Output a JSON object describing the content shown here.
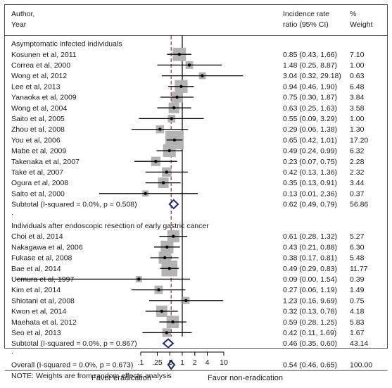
{
  "chart_data": {
    "type": "forest",
    "header": {
      "col1_line1": "Author,",
      "col1_line2": "Year",
      "col2_line1": "Incidence rate",
      "col2_line2": "ratio (95% CI)",
      "col3_line1": "%",
      "col3_line2": "Weight"
    },
    "rows": [
      {
        "kind": "group",
        "label": "Asymptomatic infected individuals"
      },
      {
        "kind": "study",
        "label": "Kosunen et al, 2011",
        "est": 0.85,
        "lo": 0.43,
        "hi": 1.66,
        "ci_text": "0.85 (0.43, 1.66)",
        "weight": 7.1,
        "weight_text": "7.10"
      },
      {
        "kind": "study",
        "label": "Correa et al, 2000",
        "est": 1.48,
        "lo": 0.25,
        "hi": 8.87,
        "ci_text": "1.48 (0.25, 8.87)",
        "weight": 1.0,
        "weight_text": "1.00"
      },
      {
        "kind": "study",
        "label": "Wong et al, 2012",
        "est": 3.04,
        "lo": 0.32,
        "hi": 29.18,
        "ci_text": "3.04 (0.32, 29.18)",
        "weight": 0.63,
        "weight_text": "0.63"
      },
      {
        "kind": "study",
        "label": "Lee et al, 2013",
        "est": 0.94,
        "lo": 0.46,
        "hi": 1.9,
        "ci_text": "0.94 (0.46, 1.90)",
        "weight": 6.48,
        "weight_text": "6.48"
      },
      {
        "kind": "study",
        "label": "Yanaoka et al, 2009",
        "est": 0.75,
        "lo": 0.3,
        "hi": 1.87,
        "ci_text": "0.75 (0.30, 1.87)",
        "weight": 3.84,
        "weight_text": "3.84"
      },
      {
        "kind": "study",
        "label": "Wong et al, 2004",
        "est": 0.63,
        "lo": 0.25,
        "hi": 1.63,
        "ci_text": "0.63 (0.25, 1.63)",
        "weight": 3.58,
        "weight_text": "3.58"
      },
      {
        "kind": "study",
        "label": "Saito et al, 2005",
        "est": 0.55,
        "lo": 0.09,
        "hi": 3.29,
        "ci_text": "0.55 (0.09, 3.29)",
        "weight": 1.0,
        "weight_text": "1.00"
      },
      {
        "kind": "study",
        "label": "Zhou et al, 2008",
        "est": 0.29,
        "lo": 0.06,
        "hi": 1.38,
        "ci_text": "0.29 (0.06, 1.38)",
        "weight": 1.3,
        "weight_text": "1.30"
      },
      {
        "kind": "study",
        "label": "You et al, 2006",
        "est": 0.65,
        "lo": 0.42,
        "hi": 1.01,
        "ci_text": "0.65 (0.42, 1.01)",
        "weight": 17.2,
        "weight_text": "17.20"
      },
      {
        "kind": "study",
        "label": "Mabe et al, 2009",
        "est": 0.49,
        "lo": 0.24,
        "hi": 0.99,
        "ci_text": "0.49 (0.24, 0.99)",
        "weight": 6.32,
        "weight_text": "6.32"
      },
      {
        "kind": "study",
        "label": "Takenaka et al, 2007",
        "est": 0.23,
        "lo": 0.07,
        "hi": 0.75,
        "ci_text": "0.23 (0.07, 0.75)",
        "weight": 2.28,
        "weight_text": "2.28"
      },
      {
        "kind": "study",
        "label": "Take et al, 2007",
        "est": 0.42,
        "lo": 0.13,
        "hi": 1.36,
        "ci_text": "0.42 (0.13, 1.36)",
        "weight": 2.32,
        "weight_text": "2.32"
      },
      {
        "kind": "study",
        "label": "Ogura et al, 2008",
        "est": 0.35,
        "lo": 0.13,
        "hi": 0.91,
        "ci_text": "0.35 (0.13, 0.91)",
        "weight": 3.44,
        "weight_text": "3.44"
      },
      {
        "kind": "study",
        "label": "Saito et al, 2000",
        "est": 0.13,
        "lo": 0.01,
        "hi": 2.36,
        "ci_text": "0.13 (0.01, 2.36)",
        "weight": 0.37,
        "weight_text": "0.37"
      },
      {
        "kind": "subtotal",
        "label": "Subtotal  (I-squared = 0.0%, p = 0.508)",
        "est": 0.62,
        "lo": 0.49,
        "hi": 0.79,
        "ci_text": "0.62 (0.49, 0.79)",
        "weight_text": "56.86"
      },
      {
        "kind": "dot",
        "label": "."
      },
      {
        "kind": "group",
        "label": "Individuals after endoscopic resection of early gastric cancer"
      },
      {
        "kind": "study",
        "label": "Choi et al, 2014",
        "est": 0.61,
        "lo": 0.28,
        "hi": 1.32,
        "ci_text": "0.61 (0.28, 1.32)",
        "weight": 5.27,
        "weight_text": "5.27"
      },
      {
        "kind": "study",
        "label": "Nakagawa et al, 2006",
        "est": 0.43,
        "lo": 0.21,
        "hi": 0.88,
        "ci_text": "0.43 (0.21, 0.88)",
        "weight": 6.3,
        "weight_text": "6.30"
      },
      {
        "kind": "study",
        "label": "Fukase et al, 2008",
        "est": 0.38,
        "lo": 0.17,
        "hi": 0.81,
        "ci_text": "0.38 (0.17, 0.81)",
        "weight": 5.48,
        "weight_text": "5.48"
      },
      {
        "kind": "study",
        "label": "Bae et al, 2014",
        "est": 0.49,
        "lo": 0.29,
        "hi": 0.83,
        "ci_text": "0.49 (0.29, 0.83)",
        "weight": 11.77,
        "weight_text": "11.77"
      },
      {
        "kind": "study",
        "label": "Uemura et al, 1997",
        "est": 0.09,
        "lo": 0.0,
        "hi": 1.54,
        "ci_text": "0.09 (0.00, 1.54)",
        "weight": 0.39,
        "weight_text": "0.39"
      },
      {
        "kind": "study",
        "label": "Kim et al, 2014",
        "est": 0.27,
        "lo": 0.06,
        "hi": 1.19,
        "ci_text": "0.27 (0.06, 1.19)",
        "weight": 1.49,
        "weight_text": "1.49"
      },
      {
        "kind": "study",
        "label": "Shiotani et al, 2008",
        "est": 1.23,
        "lo": 0.16,
        "hi": 9.69,
        "ci_text": "1.23 (0.16, 9.69)",
        "weight": 0.75,
        "weight_text": "0.75"
      },
      {
        "kind": "study",
        "label": "Kwon et al, 2014",
        "est": 0.32,
        "lo": 0.13,
        "hi": 0.78,
        "ci_text": "0.32 (0.13, 0.78)",
        "weight": 4.18,
        "weight_text": "4.18"
      },
      {
        "kind": "study",
        "label": "Maehata et al, 2012",
        "est": 0.59,
        "lo": 0.28,
        "hi": 1.25,
        "ci_text": "0.59 (0.28, 1.25)",
        "weight": 5.83,
        "weight_text": "5.83"
      },
      {
        "kind": "study",
        "label": "Seo et al, 2013",
        "est": 0.42,
        "lo": 0.11,
        "hi": 1.69,
        "ci_text": "0.42 (0.11, 1.69)",
        "weight": 1.67,
        "weight_text": "1.67"
      },
      {
        "kind": "subtotal",
        "label": "Subtotal  (I-squared = 0.0%, p = 0.867)",
        "est": 0.46,
        "lo": 0.35,
        "hi": 0.6,
        "ci_text": "0.46 (0.35, 0.60)",
        "weight_text": "43.14"
      },
      {
        "kind": "dot",
        "label": "."
      },
      {
        "kind": "overall",
        "label": "Overall  (I-squared = 0.0%, p = 0.673)",
        "est": 0.54,
        "lo": 0.46,
        "hi": 0.65,
        "ci_text": "0.54 (0.46, 0.65)",
        "weight_text": "100.00"
      },
      {
        "kind": "note",
        "label": "NOTE: Weights are from random effects analysis"
      }
    ],
    "x_scale": "log",
    "xlim": [
      0.1,
      10
    ],
    "x_ticks": [
      0.1,
      0.25,
      0.5,
      1,
      2,
      4,
      10
    ],
    "x_tick_labels": [
      ".1",
      ".25",
      ".5",
      "1",
      "2",
      "4",
      "10"
    ],
    "null_line": 1,
    "overall_line": 0.54,
    "favor_left": "Favor eradication",
    "favor_right": "Favor non-eradication",
    "colors": {
      "marker_box": "#b3b3b3",
      "diamond": "#1c2b6b",
      "overall_line": "#a0302c",
      "ci_line": "#000000",
      "frame": "#555555"
    }
  }
}
